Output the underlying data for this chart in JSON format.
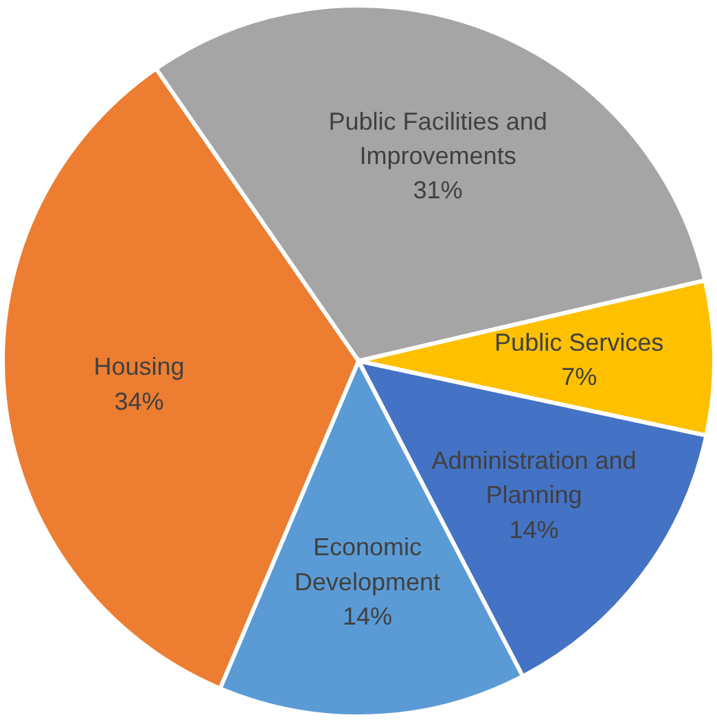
{
  "chart_data": {
    "type": "pie",
    "categories": [
      "Public Facilities and Improvements",
      "Public Services",
      "Administration and Planning",
      "Economic Development",
      "Housing"
    ],
    "values": [
      31,
      7,
      14,
      14,
      34
    ],
    "colors": [
      "#a5a5a5",
      "#ffc000",
      "#4472c4",
      "#5b9bd5",
      "#ed7d31"
    ],
    "value_labels": [
      "31%",
      "7%",
      "14%",
      "14%",
      "34%"
    ]
  }
}
